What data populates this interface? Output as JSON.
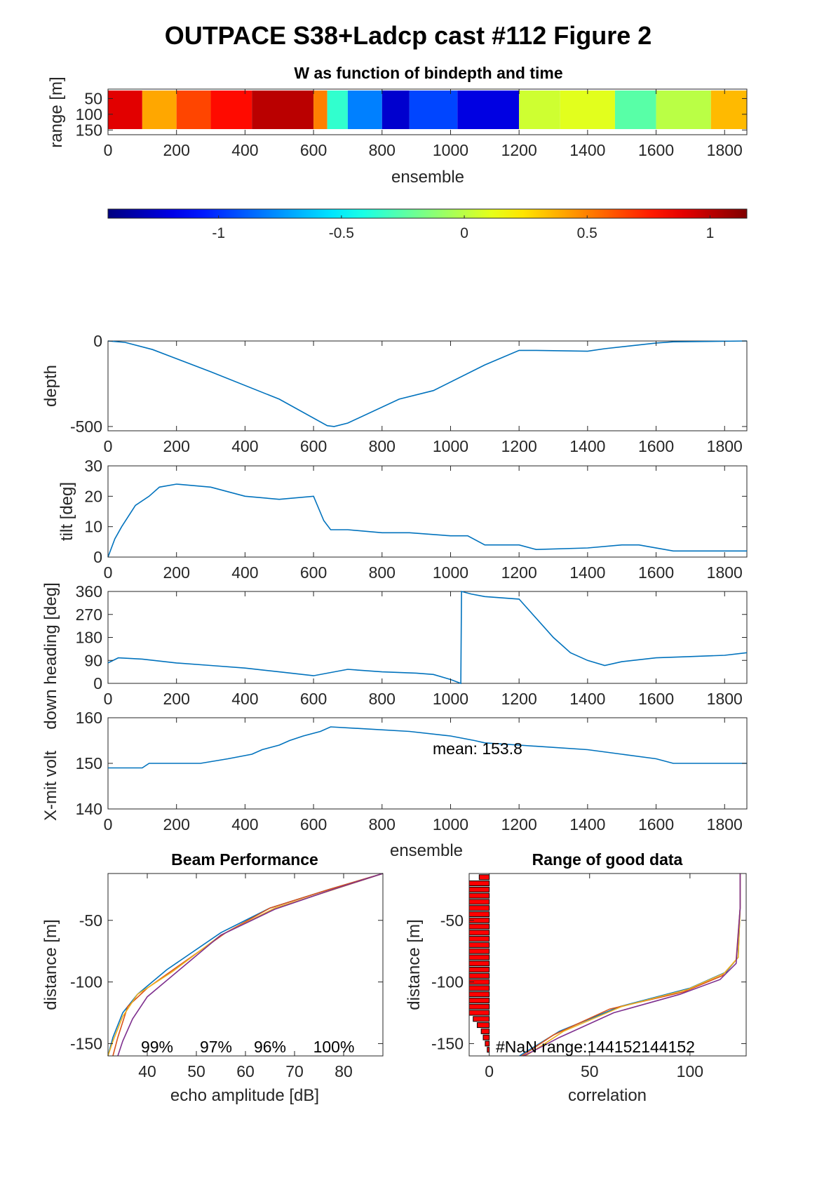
{
  "figure": {
    "title": "OUTPACE S38+Ladcp cast #112 Figure 2"
  },
  "chart_data": [
    {
      "id": "w_image",
      "type": "heatmap",
      "title": "W as function of bindepth and time",
      "xlabel": "ensemble",
      "ylabel": "range [m]",
      "xlim": [
        0,
        1865
      ],
      "ylim": [
        20,
        165
      ],
      "xticks": [
        0,
        200,
        400,
        600,
        800,
        1000,
        1200,
        1400,
        1600,
        1800
      ],
      "yticks": [
        50,
        100,
        150
      ],
      "colorbar": {
        "clim": [
          -1.45,
          1.15
        ],
        "ticks": [
          -1,
          -0.5,
          0,
          0.5,
          1
        ],
        "colormap": "jet"
      },
      "segments": [
        {
          "x": [
            0,
            100
          ],
          "value": 0.9
        },
        {
          "x": [
            100,
            200
          ],
          "value": 0.4
        },
        {
          "x": [
            200,
            300
          ],
          "value": 0.65
        },
        {
          "x": [
            300,
            420
          ],
          "value": 0.8
        },
        {
          "x": [
            420,
            600
          ],
          "value": 1.0
        },
        {
          "x": [
            600,
            640
          ],
          "value": 0.5
        },
        {
          "x": [
            640,
            700
          ],
          "value": -0.35
        },
        {
          "x": [
            700,
            800
          ],
          "value": -0.8
        },
        {
          "x": [
            800,
            880
          ],
          "value": -1.25
        },
        {
          "x": [
            880,
            1020
          ],
          "value": -0.95
        },
        {
          "x": [
            1020,
            1200
          ],
          "value": -1.2
        },
        {
          "x": [
            1200,
            1320
          ],
          "value": 0.05
        },
        {
          "x": [
            1320,
            1480
          ],
          "value": 0.1
        },
        {
          "x": [
            1480,
            1600
          ],
          "value": -0.25
        },
        {
          "x": [
            1600,
            1760
          ],
          "value": 0.0
        },
        {
          "x": [
            1760,
            1865
          ],
          "value": 0.35
        }
      ]
    },
    {
      "id": "depth",
      "type": "line",
      "xlabel": "",
      "ylabel": "depth",
      "xlim": [
        0,
        1865
      ],
      "ylim": [
        -525,
        0
      ],
      "xticks": [
        0,
        200,
        400,
        600,
        800,
        1000,
        1200,
        1400,
        1600,
        1800
      ],
      "yticks": [
        0,
        -500
      ],
      "series": [
        {
          "x": [
            0,
            50,
            130,
            300,
            500,
            640,
            660,
            700,
            850,
            950,
            1100,
            1200,
            1250,
            1400,
            1450,
            1600,
            1650,
            1865
          ],
          "y": [
            0,
            -8,
            -50,
            -180,
            -340,
            -495,
            -500,
            -480,
            -340,
            -290,
            -140,
            -55,
            -55,
            -60,
            -45,
            -12,
            -5,
            0
          ]
        }
      ]
    },
    {
      "id": "tilt",
      "type": "line",
      "xlabel": "",
      "ylabel": "tilt [deg]",
      "xlim": [
        0,
        1865
      ],
      "ylim": [
        0,
        30
      ],
      "xticks": [
        0,
        200,
        400,
        600,
        800,
        1000,
        1200,
        1400,
        1600,
        1800
      ],
      "yticks": [
        0,
        10,
        20,
        30
      ],
      "series": [
        {
          "x": [
            0,
            20,
            40,
            80,
            120,
            150,
            200,
            300,
            400,
            500,
            600,
            630,
            650,
            700,
            800,
            880,
            1000,
            1050,
            1100,
            1200,
            1250,
            1400,
            1500,
            1550,
            1650,
            1700,
            1865
          ],
          "y": [
            0,
            6,
            10,
            17,
            20,
            23,
            24,
            23,
            20,
            19,
            20,
            12,
            9,
            9,
            8,
            8,
            7,
            7,
            4,
            4,
            2.5,
            3,
            4,
            4,
            2,
            2,
            2
          ]
        }
      ]
    },
    {
      "id": "heading",
      "type": "line",
      "xlabel": "",
      "ylabel": "down heading [deg]",
      "xlim": [
        0,
        1865
      ],
      "ylim": [
        0,
        360
      ],
      "xticks": [
        0,
        200,
        400,
        600,
        800,
        1000,
        1200,
        1400,
        1600,
        1800
      ],
      "yticks": [
        0,
        90,
        180,
        270,
        360
      ],
      "series": [
        {
          "x": [
            0,
            30,
            100,
            200,
            300,
            400,
            500,
            600,
            700,
            800,
            900,
            950,
            1000,
            1030,
            1032,
            1060,
            1100,
            1200,
            1300,
            1350,
            1400,
            1450,
            1500,
            1600,
            1700,
            1800,
            1865
          ],
          "y": [
            80,
            100,
            95,
            80,
            70,
            60,
            45,
            30,
            55,
            45,
            40,
            35,
            15,
            0,
            360,
            350,
            340,
            330,
            180,
            120,
            90,
            70,
            85,
            100,
            105,
            110,
            120
          ]
        }
      ]
    },
    {
      "id": "xmit",
      "type": "line",
      "xlabel": "ensemble",
      "ylabel": "X-mit volt",
      "xlim": [
        0,
        1865
      ],
      "ylim": [
        140,
        160
      ],
      "xticks": [
        0,
        200,
        400,
        600,
        800,
        1000,
        1200,
        1400,
        1600,
        1800
      ],
      "yticks": [
        140,
        150,
        160
      ],
      "annotation": "mean: 153.8",
      "series": [
        {
          "x": [
            0,
            100,
            120,
            270,
            350,
            420,
            450,
            500,
            530,
            570,
            620,
            650,
            880,
            1000,
            1070,
            1100,
            1200,
            1400,
            1500,
            1600,
            1650,
            1865
          ],
          "y": [
            149,
            149,
            150,
            150,
            151,
            152,
            153,
            154,
            155,
            156,
            157,
            158,
            157,
            156,
            155,
            154.5,
            154,
            153,
            152,
            151,
            150,
            150
          ]
        }
      ]
    },
    {
      "id": "beam",
      "type": "line",
      "title": "Beam Performance",
      "xlabel": "echo amplitude [dB]",
      "ylabel": "distance [m]",
      "xlim": [
        32,
        88
      ],
      "ylim": [
        -160,
        -12
      ],
      "xticks": [
        40,
        50,
        60,
        70,
        80
      ],
      "yticks": [
        -50,
        -100,
        -150
      ],
      "percent_labels": [
        "99%",
        "97%",
        "96%",
        "100%"
      ],
      "series": [
        {
          "x": [
            88,
            77,
            65,
            55,
            44,
            38,
            35,
            33,
            32
          ],
          "y": [
            -12,
            -25,
            -40,
            -60,
            -90,
            -110,
            -125,
            -145,
            -160
          ]
        },
        {
          "x": [
            88,
            77,
            65,
            56,
            46,
            40,
            36,
            34,
            33
          ],
          "y": [
            -12,
            -25,
            -40,
            -60,
            -88,
            -105,
            -120,
            -145,
            -160
          ]
        },
        {
          "x": [
            88,
            78,
            66,
            55,
            45,
            38,
            35,
            33,
            32
          ],
          "y": [
            -12,
            -25,
            -40,
            -62,
            -92,
            -110,
            -128,
            -148,
            -160
          ]
        },
        {
          "x": [
            88,
            77,
            66,
            55,
            46,
            40,
            37,
            35,
            34
          ],
          "y": [
            -12,
            -26,
            -41,
            -62,
            -92,
            -112,
            -130,
            -148,
            -160
          ]
        }
      ]
    },
    {
      "id": "range",
      "type": "line",
      "title": "Range of good data",
      "xlabel": "correlation",
      "ylabel": "distance [m]",
      "xlim": [
        -10,
        128
      ],
      "ylim": [
        -160,
        -12
      ],
      "xticks": [
        0,
        50,
        100
      ],
      "yticks": [
        -50,
        -100,
        -150
      ],
      "annotation": "#NaN range:144152144152",
      "bars": {
        "y": [
          -15,
          -20,
          -25,
          -30,
          -35,
          -40,
          -45,
          -50,
          -55,
          -60,
          -65,
          -70,
          -75,
          -80,
          -85,
          -90,
          -95,
          -100,
          -105,
          -110,
          -115,
          -120,
          -125,
          -130,
          -135,
          -140,
          -145,
          -150,
          -155
        ],
        "values": [
          -5,
          -10,
          -10,
          -10,
          -10,
          -10,
          -10,
          -10,
          -10,
          -10,
          -10,
          -10,
          -10,
          -10,
          -10,
          -10,
          -10,
          -10,
          -10,
          -10,
          -10,
          -10,
          -10,
          -8,
          -6,
          -4,
          -3,
          -2,
          -1
        ]
      },
      "series": [
        {
          "x": [
            125,
            125,
            124,
            118,
            100,
            65,
            35,
            20,
            15
          ],
          "y": [
            -12,
            -40,
            -80,
            -92,
            -105,
            -120,
            -140,
            -155,
            -160
          ]
        },
        {
          "x": [
            125,
            125,
            123,
            116,
            97,
            60,
            32,
            20,
            16
          ],
          "y": [
            -12,
            -40,
            -82,
            -95,
            -108,
            -122,
            -143,
            -156,
            -160
          ]
        },
        {
          "x": [
            125,
            125,
            124,
            117,
            99,
            66,
            37,
            23,
            18
          ],
          "y": [
            -12,
            -40,
            -80,
            -93,
            -106,
            -120,
            -140,
            -155,
            -160
          ]
        },
        {
          "x": [
            125,
            125,
            123,
            115,
            95,
            62,
            35,
            22,
            17
          ],
          "y": [
            -12,
            -40,
            -85,
            -98,
            -110,
            -125,
            -145,
            -156,
            -160
          ]
        }
      ]
    }
  ],
  "colors": {
    "line": "#0072BD",
    "series4": [
      "#0072BD",
      "#D95319",
      "#EDB120",
      "#7E2F8E"
    ],
    "bar_fill": "#ff0000",
    "axis": "#262626"
  }
}
